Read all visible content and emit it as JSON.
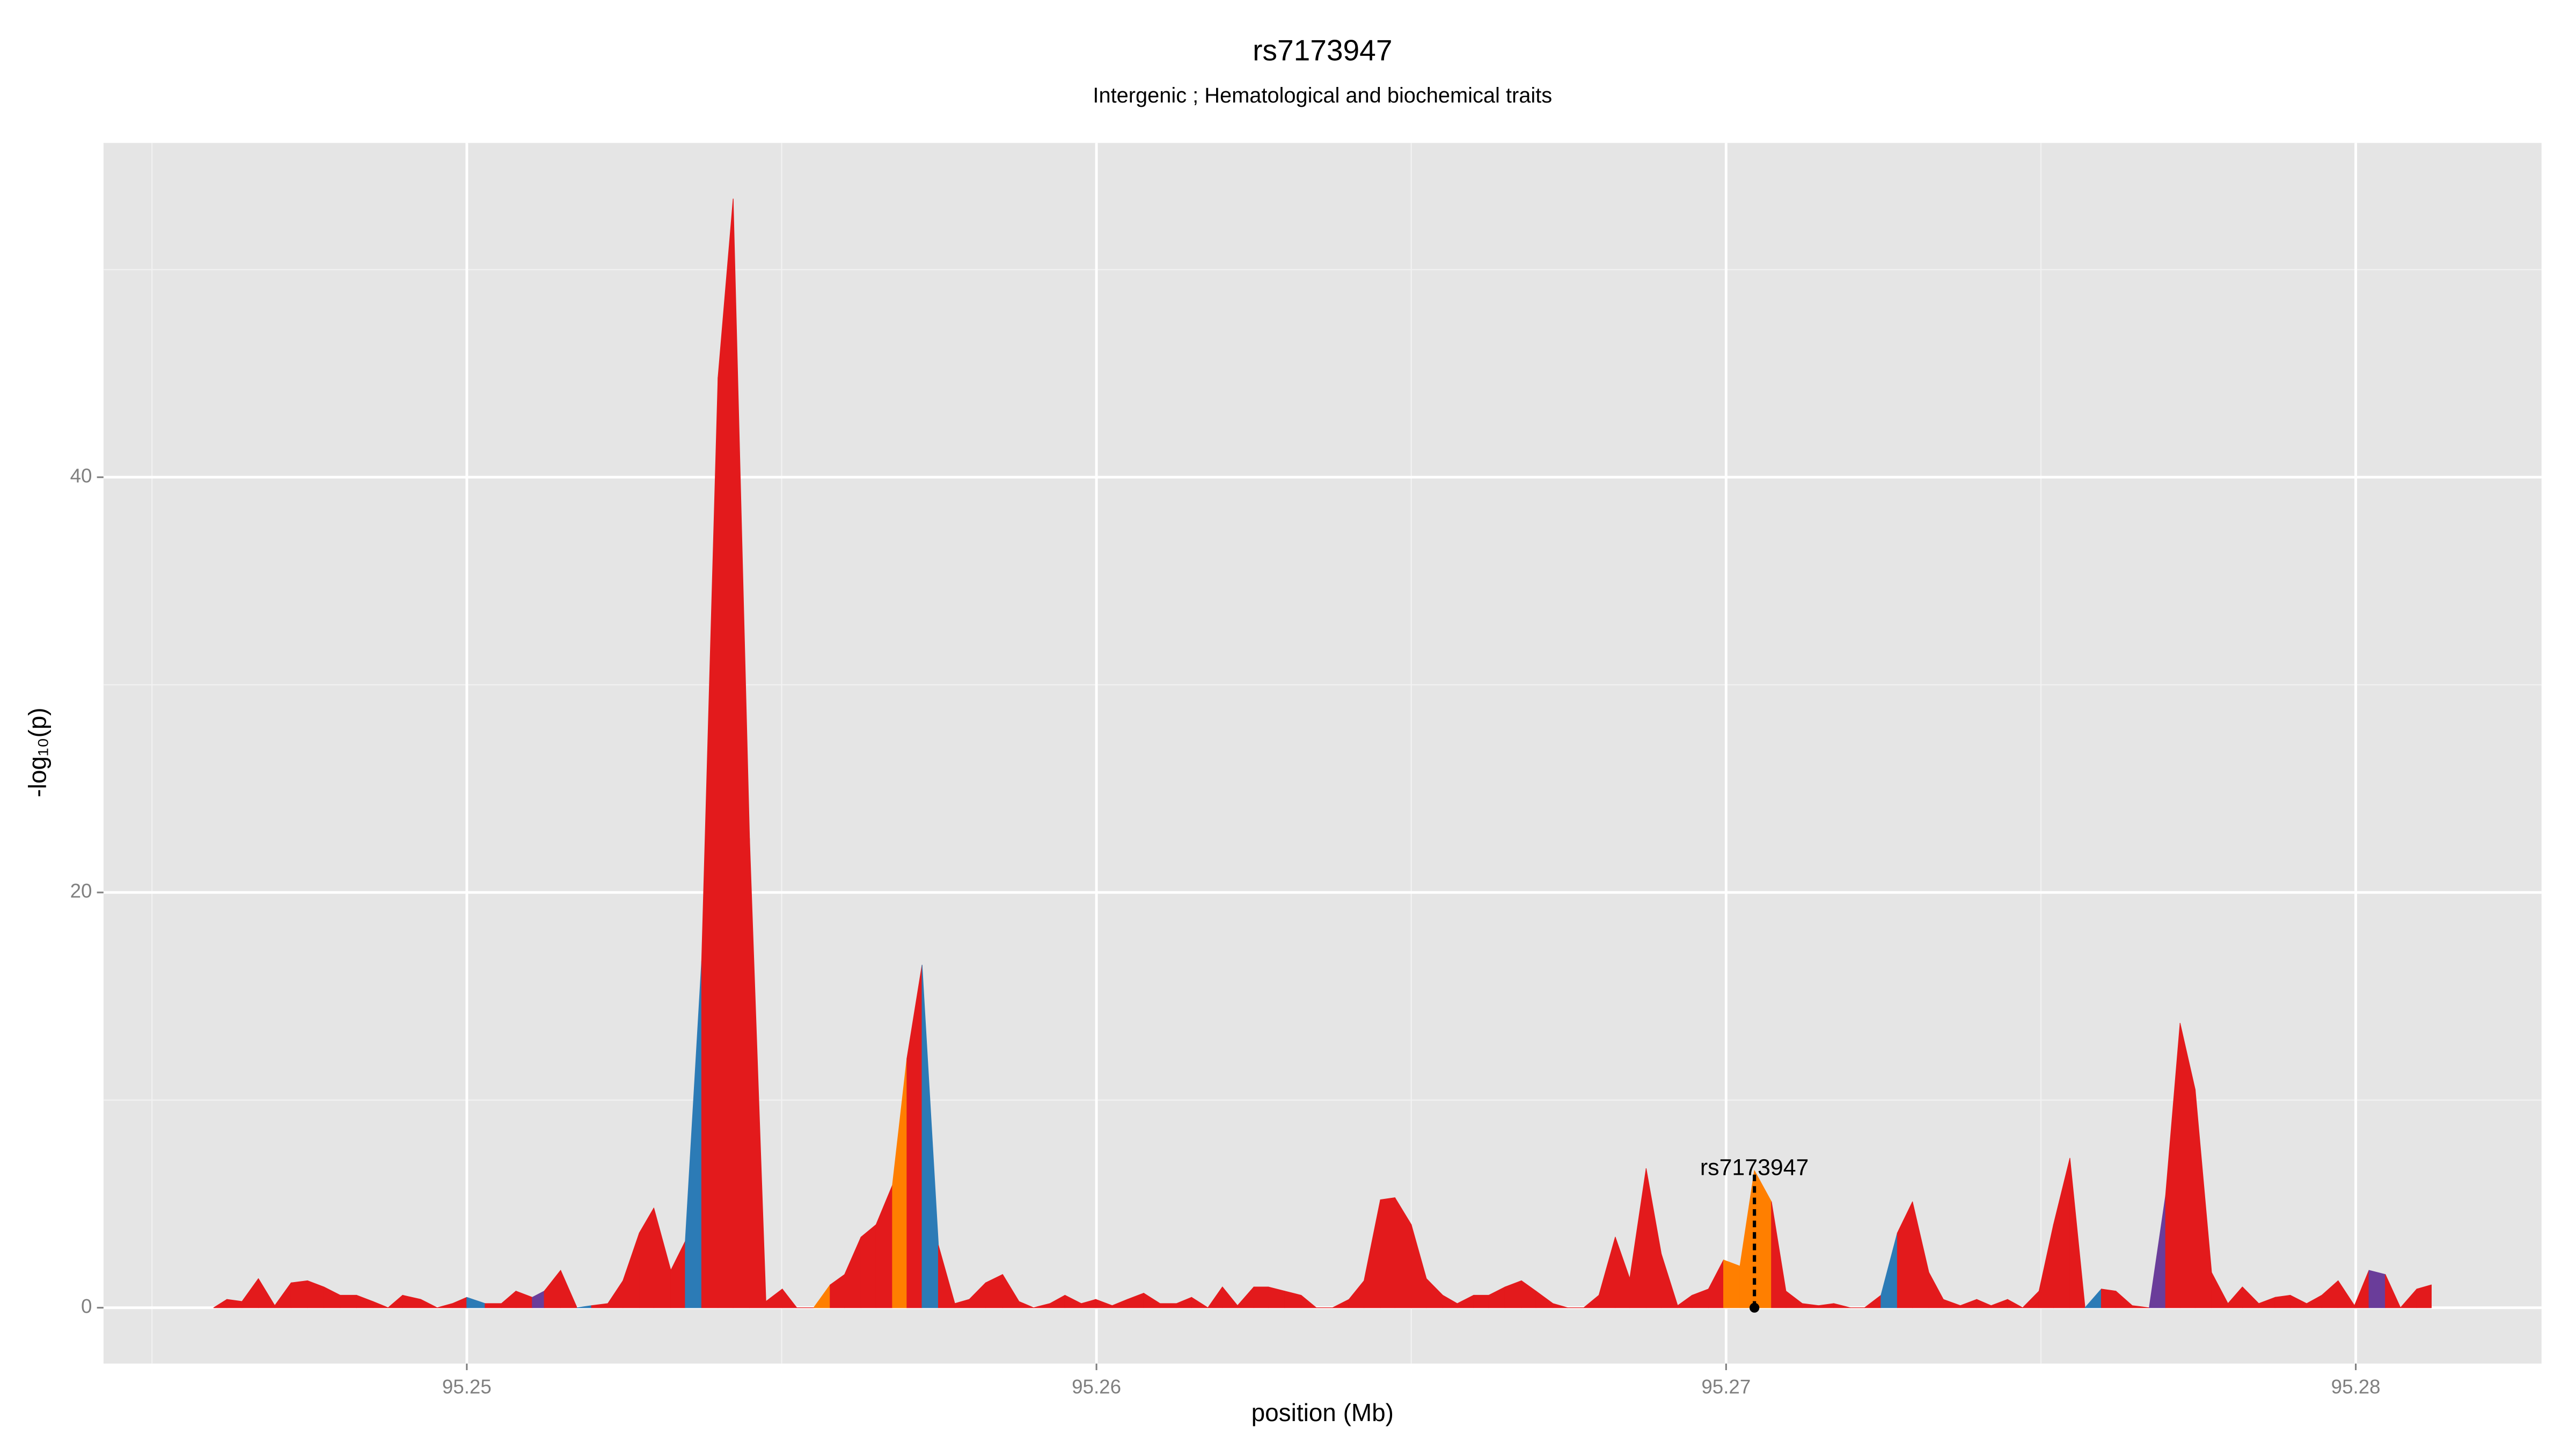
{
  "chart_data": {
    "type": "area",
    "title": "rs7173947",
    "subtitle": "Intergenic ; Hematological and biochemical traits",
    "x_label": "position (Mb)",
    "y_label": "-log₁₀(p)",
    "x": [
      95.24598,
      95.24619,
      95.24643,
      95.24669,
      95.24695,
      95.24721,
      95.24747,
      95.24773,
      95.24799,
      95.24825,
      95.24851,
      95.24875,
      95.24898,
      95.24927,
      95.24953,
      95.24977,
      95.25,
      95.25029,
      95.25055,
      95.25078,
      95.25104,
      95.25123,
      95.25149,
      95.25175,
      95.25198,
      95.25224,
      95.25248,
      95.25274,
      95.25297,
      95.25324,
      95.25347,
      95.25373,
      95.25399,
      95.25423,
      95.25449,
      95.25475,
      95.25501,
      95.25524,
      95.25551,
      95.25577,
      95.256,
      95.25626,
      95.2565,
      95.25676,
      95.25699,
      95.25723,
      95.25749,
      95.25775,
      95.25798,
      95.25824,
      95.25851,
      95.25877,
      95.259,
      95.25926,
      95.2595,
      95.25976,
      95.25999,
      95.26025,
      95.26049,
      95.26075,
      95.26101,
      95.26127,
      95.26151,
      95.26177,
      95.262,
      95.26224,
      95.2625,
      95.26273,
      95.26299,
      95.26325,
      95.26349,
      95.26375,
      95.26401,
      95.26425,
      95.26451,
      95.26474,
      95.265,
      95.26524,
      95.2655,
      95.26573,
      95.26599,
      95.26623,
      95.26649,
      95.26675,
      95.26698,
      95.26725,
      95.26748,
      95.26774,
      95.26798,
      95.26824,
      95.26847,
      95.26873,
      95.26897,
      95.26923,
      95.26946,
      95.26972,
      95.26996,
      95.27022,
      95.27045,
      95.27072,
      95.27095,
      95.27121,
      95.27147,
      95.27171,
      95.27197,
      95.2722,
      95.27246,
      95.27272,
      95.27296,
      95.27322,
      95.27345,
      95.27372,
      95.27398,
      95.27421,
      95.27447,
      95.27471,
      95.27497,
      95.2752,
      95.27546,
      95.2757,
      95.27596,
      95.27619,
      95.27645,
      95.27672,
      95.27698,
      95.27721,
      95.27745,
      95.27771,
      95.27797,
      95.2782,
      95.27846,
      95.27872,
      95.27896,
      95.27922,
      95.27946,
      95.27972,
      95.27998,
      95.28021,
      95.28047,
      95.28071,
      95.28097,
      95.2812
    ],
    "values": [
      0,
      0.4,
      0.3,
      1.4,
      0.1,
      1.2,
      1.3,
      1.0,
      0.6,
      0.6,
      0.3,
      0,
      0.6,
      0.4,
      0,
      0.2,
      0.5,
      0.2,
      0.2,
      0.8,
      0.5,
      0.8,
      1.8,
      0,
      0.1,
      0.2,
      1.3,
      3.6,
      4.8,
      1.8,
      3.2,
      16.7,
      44.8,
      53.4,
      22.6,
      0.3,
      0.9,
      0,
      0,
      1.1,
      1.6,
      3.4,
      4.0,
      5.9,
      12.0,
      16.5,
      3.0,
      0.2,
      0.4,
      1.2,
      1.6,
      0.3,
      0,
      0.2,
      0.6,
      0.2,
      0.4,
      0.1,
      0.4,
      0.7,
      0.2,
      0.2,
      0.5,
      0,
      1.0,
      0.1,
      1.0,
      1.0,
      0.8,
      0.6,
      0,
      0,
      0.4,
      1.3,
      5.2,
      5.3,
      4.0,
      1.4,
      0.6,
      0.2,
      0.6,
      0.6,
      1.0,
      1.3,
      0.8,
      0.2,
      0,
      0,
      0.6,
      3.4,
      1.4,
      6.7,
      2.6,
      0.1,
      0.6,
      0.9,
      2.3,
      2.0,
      6.6,
      5.1,
      0.8,
      0.2,
      0.1,
      0.2,
      0,
      0,
      0.6,
      3.6,
      5.1,
      1.7,
      0.4,
      0.1,
      0.4,
      0.1,
      0.4,
      0,
      0.8,
      4.0,
      7.2,
      0,
      0.9,
      0.8,
      0.1,
      0,
      5.4,
      13.7,
      10.5,
      1.7,
      0.2,
      1.0,
      0.2,
      0.5,
      0.6,
      0.2,
      0.6,
      1.3,
      0.1,
      1.8,
      1.6,
      0,
      0.9,
      1.1
    ],
    "colors": [
      "#e31a1c",
      "#e31a1c",
      "#e31a1c",
      "#e31a1c",
      "#e31a1c",
      "#e31a1c",
      "#e31a1c",
      "#e31a1c",
      "#e31a1c",
      "#e31a1c",
      "#e31a1c",
      "#e31a1c",
      "#e31a1c",
      "#e31a1c",
      "#e31a1c",
      "#e31a1c",
      "#2c7bb6",
      "#e31a1c",
      "#e31a1c",
      "#e31a1c",
      "#6a3d9a",
      "#e31a1c",
      "#e31a1c",
      "#2c7bb6",
      "#e31a1c",
      "#e31a1c",
      "#e31a1c",
      "#e31a1c",
      "#e31a1c",
      "#e31a1c",
      "#2c7bb6",
      "#e31a1c",
      "#e31a1c",
      "#e31a1c",
      "#e31a1c",
      "#e31a1c",
      "#e31a1c",
      "#e31a1c",
      "#ff7f00",
      "#e31a1c",
      "#e31a1c",
      "#e31a1c",
      "#e31a1c",
      "#ff7f00",
      "#e31a1c",
      "#2c7bb6",
      "#e31a1c",
      "#e31a1c",
      "#e31a1c",
      "#e31a1c",
      "#e31a1c",
      "#e31a1c",
      "#e31a1c",
      "#e31a1c",
      "#e31a1c",
      "#e31a1c",
      "#e31a1c",
      "#e31a1c",
      "#e31a1c",
      "#e31a1c",
      "#e31a1c",
      "#e31a1c",
      "#e31a1c",
      "#e31a1c",
      "#e31a1c",
      "#e31a1c",
      "#e31a1c",
      "#e31a1c",
      "#e31a1c",
      "#e31a1c",
      "#e31a1c",
      "#e31a1c",
      "#e31a1c",
      "#e31a1c",
      "#e31a1c",
      "#e31a1c",
      "#e31a1c",
      "#e31a1c",
      "#e31a1c",
      "#e31a1c",
      "#e31a1c",
      "#e31a1c",
      "#e31a1c",
      "#e31a1c",
      "#e31a1c",
      "#e31a1c",
      "#e31a1c",
      "#e31a1c",
      "#e31a1c",
      "#e31a1c",
      "#e31a1c",
      "#e31a1c",
      "#e31a1c",
      "#e31a1c",
      "#e31a1c",
      "#e31a1c",
      "#ff7f00",
      "#ff7f00",
      "#ff7f00",
      "#e31a1c",
      "#e31a1c",
      "#e31a1c",
      "#e31a1c",
      "#e31a1c",
      "#e31a1c",
      "#e31a1c",
      "#2c7bb6",
      "#e31a1c",
      "#e31a1c",
      "#e31a1c",
      "#e31a1c",
      "#e31a1c",
      "#e31a1c",
      "#e31a1c",
      "#e31a1c",
      "#e31a1c",
      "#e31a1c",
      "#e31a1c",
      "#e31a1c",
      "#2c7bb6",
      "#e31a1c",
      "#e31a1c",
      "#e31a1c",
      "#6a3d9a",
      "#e31a1c",
      "#e31a1c",
      "#e31a1c",
      "#e31a1c",
      "#e31a1c",
      "#e31a1c",
      "#e31a1c",
      "#e31a1c",
      "#e31a1c",
      "#e31a1c",
      "#e31a1c",
      "#e31a1c",
      "#e31a1c",
      "#6a3d9a",
      "#e31a1c",
      "#e31a1c",
      "#e31a1c",
      "#e31a1c"
    ],
    "annotation": {
      "text": "rs7173947",
      "x": 95.27045,
      "y": 6.6
    },
    "xlim": [
      95.24423,
      95.28295
    ],
    "ylim": [
      -2.69,
      56.1
    ],
    "xticks": [
      95.25,
      95.26,
      95.27,
      95.28
    ],
    "yticks": [
      0,
      20,
      40
    ],
    "x_minor_grid": [
      95.245,
      95.255,
      95.265,
      95.275
    ],
    "y_minor_grid": [
      10,
      30,
      50
    ],
    "grid": true
  }
}
